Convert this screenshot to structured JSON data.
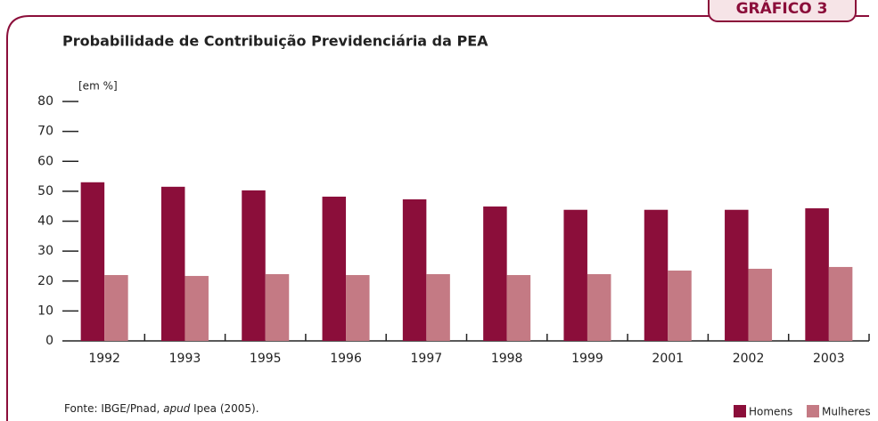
{
  "chart_data": {
    "type": "bar",
    "tab_label": "GRÁFICO 3",
    "title": "Probabilidade de Contribuição Previdenciária da PEA",
    "y_unit": "[em %]",
    "categories": [
      "1992",
      "1993",
      "1995",
      "1996",
      "1997",
      "1998",
      "1999",
      "2001",
      "2002",
      "2003"
    ],
    "series": [
      {
        "name": "Homens",
        "color": "#8b0e3a",
        "values": [
          53.0,
          51.5,
          50.3,
          48.2,
          47.3,
          44.9,
          43.8,
          43.8,
          43.8,
          44.3
        ]
      },
      {
        "name": "Mulheres",
        "color": "#c47a84",
        "values": [
          22.0,
          21.7,
          22.3,
          22.0,
          22.3,
          22.0,
          22.3,
          23.5,
          24.1,
          24.7
        ]
      }
    ],
    "ylim": [
      0,
      80
    ],
    "yticks": [
      0,
      10,
      20,
      30,
      40,
      50,
      60,
      70,
      80
    ],
    "source": [
      "Fonte: IBGE/Pnad, ",
      "apud",
      " Ipea (2005)."
    ],
    "legend": "bottom-right"
  }
}
